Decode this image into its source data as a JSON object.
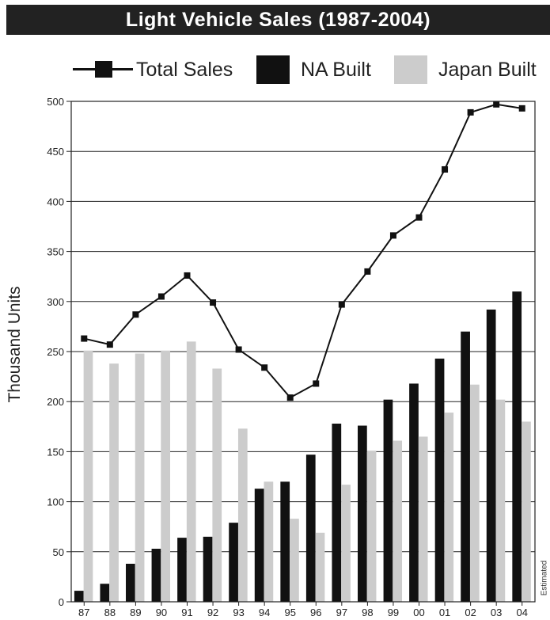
{
  "chart_data": {
    "type": "bar",
    "title": "Light Vehicle Sales (1987-2004)",
    "ylabel": "Thousand Units",
    "xlabel": "",
    "ylim": [
      0,
      500
    ],
    "yticks": [
      0,
      50,
      100,
      150,
      200,
      250,
      300,
      350,
      400,
      450,
      500
    ],
    "grid": true,
    "legend_position": "top",
    "categories": [
      "87",
      "88",
      "89",
      "90",
      "91",
      "92",
      "93",
      "94",
      "95",
      "96",
      "97",
      "98",
      "99",
      "00",
      "01",
      "02",
      "03",
      "04"
    ],
    "series": [
      {
        "name": "Total Sales",
        "type": "line",
        "color": "#111111",
        "values": [
          263,
          257,
          287,
          305,
          326,
          299,
          252,
          234,
          204,
          218,
          297,
          330,
          366,
          384,
          432,
          489,
          497,
          493
        ]
      },
      {
        "name": "NA Built",
        "type": "bar",
        "color": "#111111",
        "values": [
          11,
          18,
          38,
          53,
          64,
          65,
          79,
          113,
          120,
          147,
          178,
          176,
          202,
          218,
          243,
          270,
          292,
          310
        ]
      },
      {
        "name": "Japan Built",
        "type": "bar",
        "color": "#cccccc",
        "values": [
          251,
          238,
          248,
          251,
          260,
          233,
          173,
          120,
          83,
          69,
          117,
          151,
          161,
          165,
          189,
          217,
          202,
          180
        ]
      }
    ],
    "annotation": "Estimated"
  }
}
